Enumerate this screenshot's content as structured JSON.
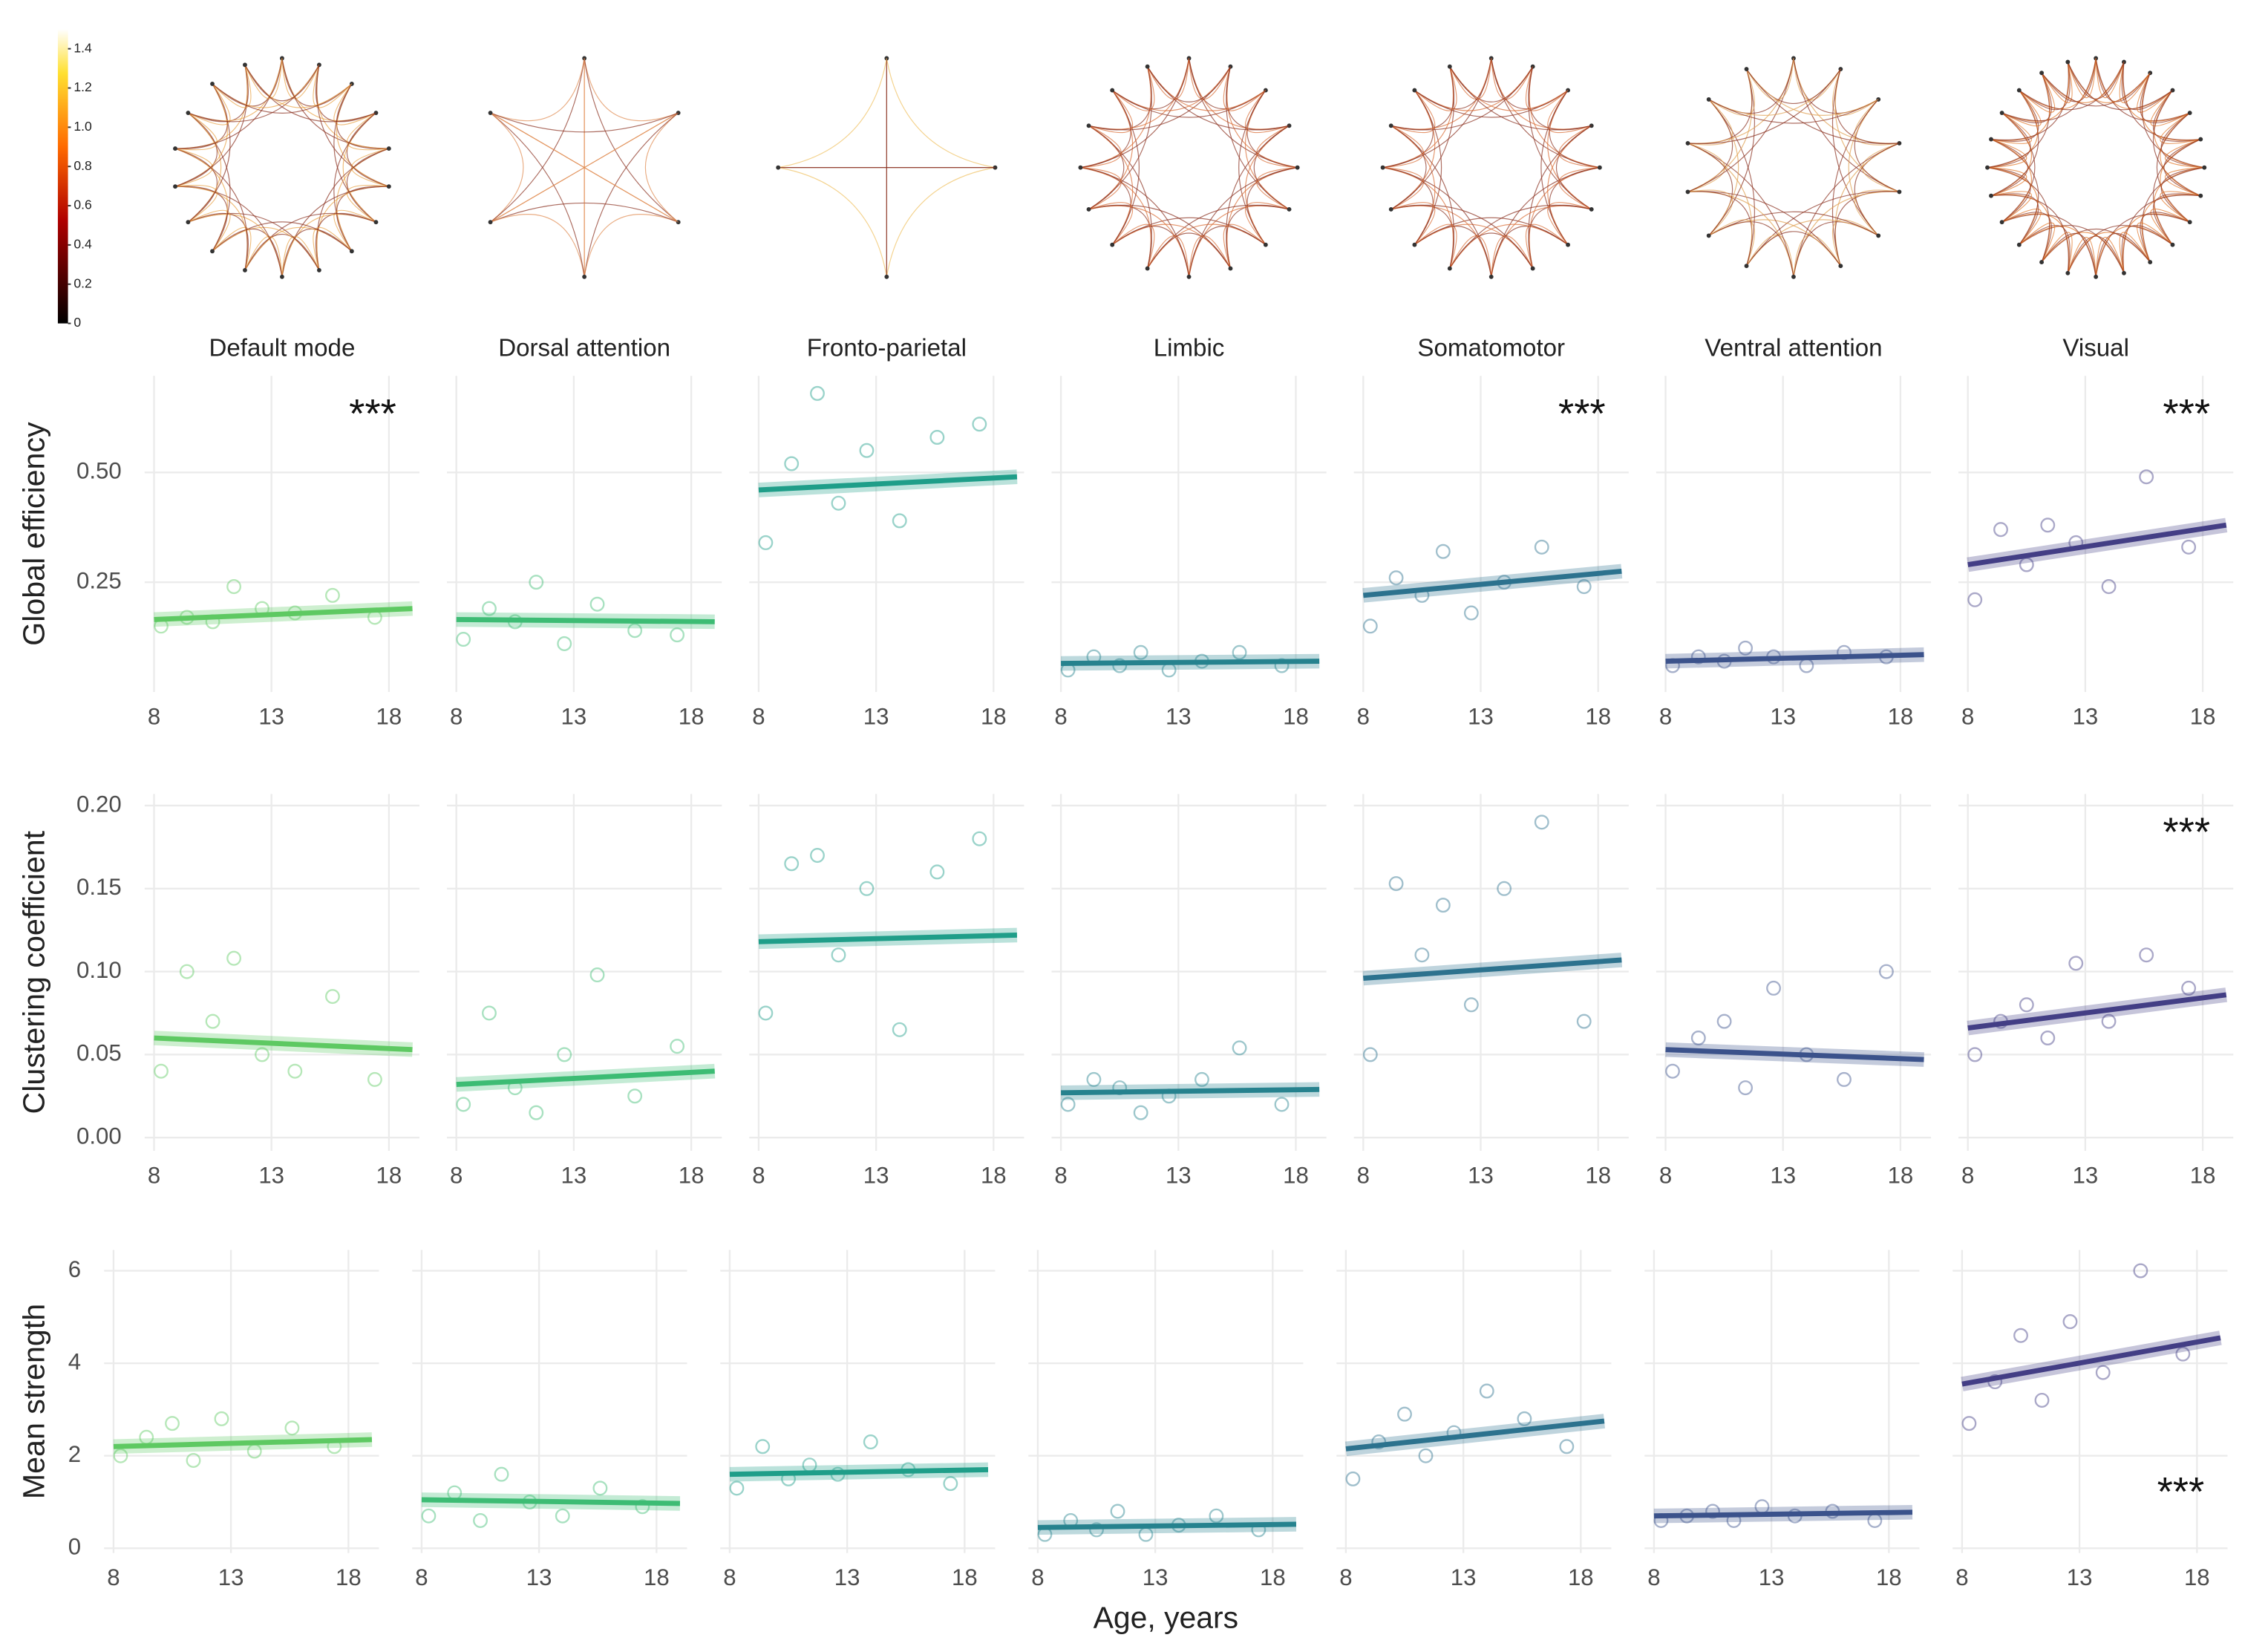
{
  "x_label": "Age, years",
  "chart_data": [
    {
      "type": "colorbar",
      "ylim": [
        0,
        1.5
      ],
      "yticks": [
        0,
        0.2,
        0.4,
        0.6,
        0.8,
        {
          "value": 1,
          "label": "1.0"
        },
        1.2,
        1.4
      ]
    },
    {
      "type": "scatter",
      "y_label": "Global efficiency",
      "xlim": [
        7.6,
        19.3
      ],
      "xticks": [
        8,
        13,
        18
      ],
      "ylim": [
        0,
        0.72
      ],
      "yticks": [
        0.25,
        {
          "value": 0.5,
          "label": "0.50"
        }
      ],
      "grid": true,
      "panels": [
        {
          "title": "Default mode",
          "color": "#5ec962",
          "annotation": "***",
          "x": [
            8.3,
            9.4,
            10.5,
            11.4,
            12.6,
            14.0,
            15.6,
            17.4
          ],
          "values": [
            0.15,
            0.17,
            0.16,
            0.24,
            0.19,
            0.18,
            0.22,
            0.17
          ],
          "fit": {
            "x": [
              8,
              19
            ],
            "values": [
              0.165,
              0.19
            ]
          }
        },
        {
          "title": "Dorsal attention",
          "color": "#3dbc74",
          "x": [
            8.3,
            9.4,
            10.5,
            11.4,
            12.6,
            14.0,
            15.6,
            17.4
          ],
          "values": [
            0.12,
            0.19,
            0.16,
            0.25,
            0.11,
            0.2,
            0.14,
            0.13
          ],
          "fit": {
            "x": [
              8,
              19
            ],
            "values": [
              0.165,
              0.16
            ]
          }
        },
        {
          "title": "Fronto-parietal",
          "color": "#1f9e89",
          "x": [
            8.3,
            9.4,
            10.5,
            11.4,
            12.6,
            14.0,
            15.6,
            17.4
          ],
          "values": [
            0.34,
            0.52,
            0.68,
            0.43,
            0.55,
            0.39,
            0.58,
            0.61
          ],
          "fit": {
            "x": [
              8,
              19
            ],
            "values": [
              0.46,
              0.49
            ]
          }
        },
        {
          "title": "Limbic",
          "color": "#26828e",
          "x": [
            8.3,
            9.4,
            10.5,
            11.4,
            12.6,
            14.0,
            15.6,
            17.4
          ],
          "values": [
            0.05,
            0.08,
            0.06,
            0.09,
            0.05,
            0.07,
            0.09,
            0.06
          ],
          "fit": {
            "x": [
              8,
              19
            ],
            "values": [
              0.065,
              0.07
            ]
          }
        },
        {
          "title": "Somatomotor",
          "color": "#2c728e",
          "annotation": "***",
          "x": [
            8.3,
            9.4,
            10.5,
            11.4,
            12.6,
            14.0,
            15.6,
            17.4
          ],
          "values": [
            0.15,
            0.26,
            0.22,
            0.32,
            0.18,
            0.25,
            0.33,
            0.24
          ],
          "fit": {
            "x": [
              8,
              19
            ],
            "values": [
              0.22,
              0.275
            ]
          }
        },
        {
          "title": "Ventral attention",
          "color": "#3b528b",
          "x": [
            8.3,
            9.4,
            10.5,
            11.4,
            12.6,
            14.0,
            15.6,
            17.4
          ],
          "values": [
            0.06,
            0.08,
            0.07,
            0.1,
            0.08,
            0.06,
            0.09,
            0.08
          ],
          "fit": {
            "x": [
              8,
              19
            ],
            "values": [
              0.07,
              0.085
            ]
          }
        },
        {
          "title": "Visual",
          "color": "#433e85",
          "annotation": "***",
          "x": [
            8.3,
            9.4,
            10.5,
            11.4,
            12.6,
            14.0,
            15.6,
            17.4
          ],
          "values": [
            0.21,
            0.37,
            0.29,
            0.38,
            0.34,
            0.24,
            0.49,
            0.33
          ],
          "fit": {
            "x": [
              8,
              19
            ],
            "values": [
              0.29,
              0.38
            ]
          }
        }
      ]
    },
    {
      "type": "scatter",
      "y_label": "Clustering coefficient",
      "xlim": [
        7.6,
        19.3
      ],
      "xticks": [
        8,
        13,
        18
      ],
      "ylim": [
        -0.008,
        0.207
      ],
      "yticks": [
        {
          "value": 0,
          "label": "0.00"
        },
        0.05,
        {
          "value": 0.1,
          "label": "0.10"
        },
        0.15,
        {
          "value": 0.2,
          "label": "0.20"
        }
      ],
      "grid": true,
      "panels": [
        {
          "color": "#5ec962",
          "x": [
            8.3,
            9.4,
            10.5,
            11.4,
            12.6,
            14.0,
            15.6,
            17.4
          ],
          "values": [
            0.04,
            0.1,
            0.07,
            0.108,
            0.05,
            0.04,
            0.085,
            0.035
          ],
          "fit": {
            "x": [
              8,
              19
            ],
            "values": [
              0.06,
              0.053
            ]
          }
        },
        {
          "color": "#3dbc74",
          "x": [
            8.3,
            9.4,
            10.5,
            11.4,
            12.6,
            14.0,
            15.6,
            17.4
          ],
          "values": [
            0.02,
            0.075,
            0.03,
            0.015,
            0.05,
            0.098,
            0.025,
            0.055
          ],
          "fit": {
            "x": [
              8,
              19
            ],
            "values": [
              0.032,
              0.04
            ]
          }
        },
        {
          "color": "#1f9e89",
          "x": [
            8.3,
            9.4,
            10.5,
            11.4,
            12.6,
            14.0,
            15.6,
            17.4
          ],
          "values": [
            0.075,
            0.165,
            0.17,
            0.11,
            0.15,
            0.065,
            0.16,
            0.18
          ],
          "fit": {
            "x": [
              8,
              19
            ],
            "values": [
              0.118,
              0.122
            ]
          }
        },
        {
          "color": "#26828e",
          "x": [
            8.3,
            9.4,
            10.5,
            11.4,
            12.6,
            14.0,
            15.6,
            17.4
          ],
          "values": [
            0.02,
            0.035,
            0.03,
            0.015,
            0.025,
            0.035,
            0.054,
            0.02
          ],
          "fit": {
            "x": [
              8,
              19
            ],
            "values": [
              0.027,
              0.029
            ]
          }
        },
        {
          "color": "#2c728e",
          "x": [
            8.3,
            9.4,
            10.5,
            11.4,
            12.6,
            14.0,
            15.6,
            17.4
          ],
          "values": [
            0.05,
            0.153,
            0.11,
            0.14,
            0.08,
            0.15,
            0.19,
            0.07
          ],
          "fit": {
            "x": [
              8,
              19
            ],
            "values": [
              0.096,
              0.107
            ]
          }
        },
        {
          "color": "#3b528b",
          "x": [
            8.3,
            9.4,
            10.5,
            11.4,
            12.6,
            14.0,
            15.6,
            17.4
          ],
          "values": [
            0.04,
            0.06,
            0.07,
            0.03,
            0.09,
            0.05,
            0.035,
            0.1
          ],
          "fit": {
            "x": [
              8,
              19
            ],
            "values": [
              0.053,
              0.047
            ]
          }
        },
        {
          "color": "#433e85",
          "annotation": "***",
          "x": [
            8.3,
            9.4,
            10.5,
            11.4,
            12.6,
            14.0,
            15.6,
            17.4
          ],
          "values": [
            0.05,
            0.07,
            0.08,
            0.06,
            0.105,
            0.07,
            0.11,
            0.09
          ],
          "fit": {
            "x": [
              8,
              19
            ],
            "values": [
              0.066,
              0.086
            ]
          }
        }
      ]
    },
    {
      "type": "scatter",
      "y_label": "Mean strength",
      "xlim": [
        7.6,
        19.3
      ],
      "xticks": [
        8,
        13,
        18
      ],
      "ylim": [
        -0.1,
        6.45
      ],
      "yticks": [
        0,
        2,
        4,
        6
      ],
      "grid": true,
      "panels": [
        {
          "color": "#5ec962",
          "x": [
            8.3,
            9.4,
            10.5,
            11.4,
            12.6,
            14.0,
            15.6,
            17.4
          ],
          "values": [
            2.0,
            2.4,
            2.7,
            1.9,
            2.8,
            2.1,
            2.6,
            2.2
          ],
          "fit": {
            "x": [
              8,
              19
            ],
            "values": [
              2.2,
              2.35
            ]
          }
        },
        {
          "color": "#3dbc74",
          "x": [
            8.3,
            9.4,
            10.5,
            11.4,
            12.6,
            14.0,
            15.6,
            17.4
          ],
          "values": [
            0.7,
            1.2,
            0.6,
            1.6,
            1.0,
            0.7,
            1.3,
            0.9
          ],
          "fit": {
            "x": [
              8,
              19
            ],
            "values": [
              1.05,
              0.97
            ]
          }
        },
        {
          "color": "#1f9e89",
          "x": [
            8.3,
            9.4,
            10.5,
            11.4,
            12.6,
            14.0,
            15.6,
            17.4
          ],
          "values": [
            1.3,
            2.2,
            1.5,
            1.8,
            1.6,
            2.3,
            1.7,
            1.4
          ],
          "fit": {
            "x": [
              8,
              19
            ],
            "values": [
              1.6,
              1.7
            ]
          }
        },
        {
          "color": "#26828e",
          "x": [
            8.3,
            9.4,
            10.5,
            11.4,
            12.6,
            14.0,
            15.6,
            17.4
          ],
          "values": [
            0.3,
            0.6,
            0.4,
            0.8,
            0.3,
            0.5,
            0.7,
            0.4
          ],
          "fit": {
            "x": [
              8,
              19
            ],
            "values": [
              0.45,
              0.52
            ]
          }
        },
        {
          "color": "#2c728e",
          "x": [
            8.3,
            9.4,
            10.5,
            11.4,
            12.6,
            14.0,
            15.6,
            17.4
          ],
          "values": [
            1.5,
            2.3,
            2.9,
            2.0,
            2.5,
            3.4,
            2.8,
            2.2
          ],
          "fit": {
            "x": [
              8,
              19
            ],
            "values": [
              2.15,
              2.75
            ]
          }
        },
        {
          "color": "#3b528b",
          "x": [
            8.3,
            9.4,
            10.5,
            11.4,
            12.6,
            14.0,
            15.6,
            17.4
          ],
          "values": [
            0.6,
            0.7,
            0.8,
            0.6,
            0.9,
            0.7,
            0.8,
            0.6
          ],
          "fit": {
            "x": [
              8,
              19
            ],
            "values": [
              0.7,
              0.78
            ]
          }
        },
        {
          "color": "#433e85",
          "annotation": "***",
          "annotation_position": "bottom-right",
          "x": [
            8.3,
            9.4,
            10.5,
            11.4,
            12.6,
            14.0,
            15.6,
            17.4
          ],
          "values": [
            2.7,
            3.6,
            4.6,
            3.2,
            4.9,
            3.8,
            6.0,
            4.2
          ],
          "fit": {
            "x": [
              8,
              19
            ],
            "values": [
              3.55,
              4.55
            ]
          }
        }
      ]
    }
  ]
}
